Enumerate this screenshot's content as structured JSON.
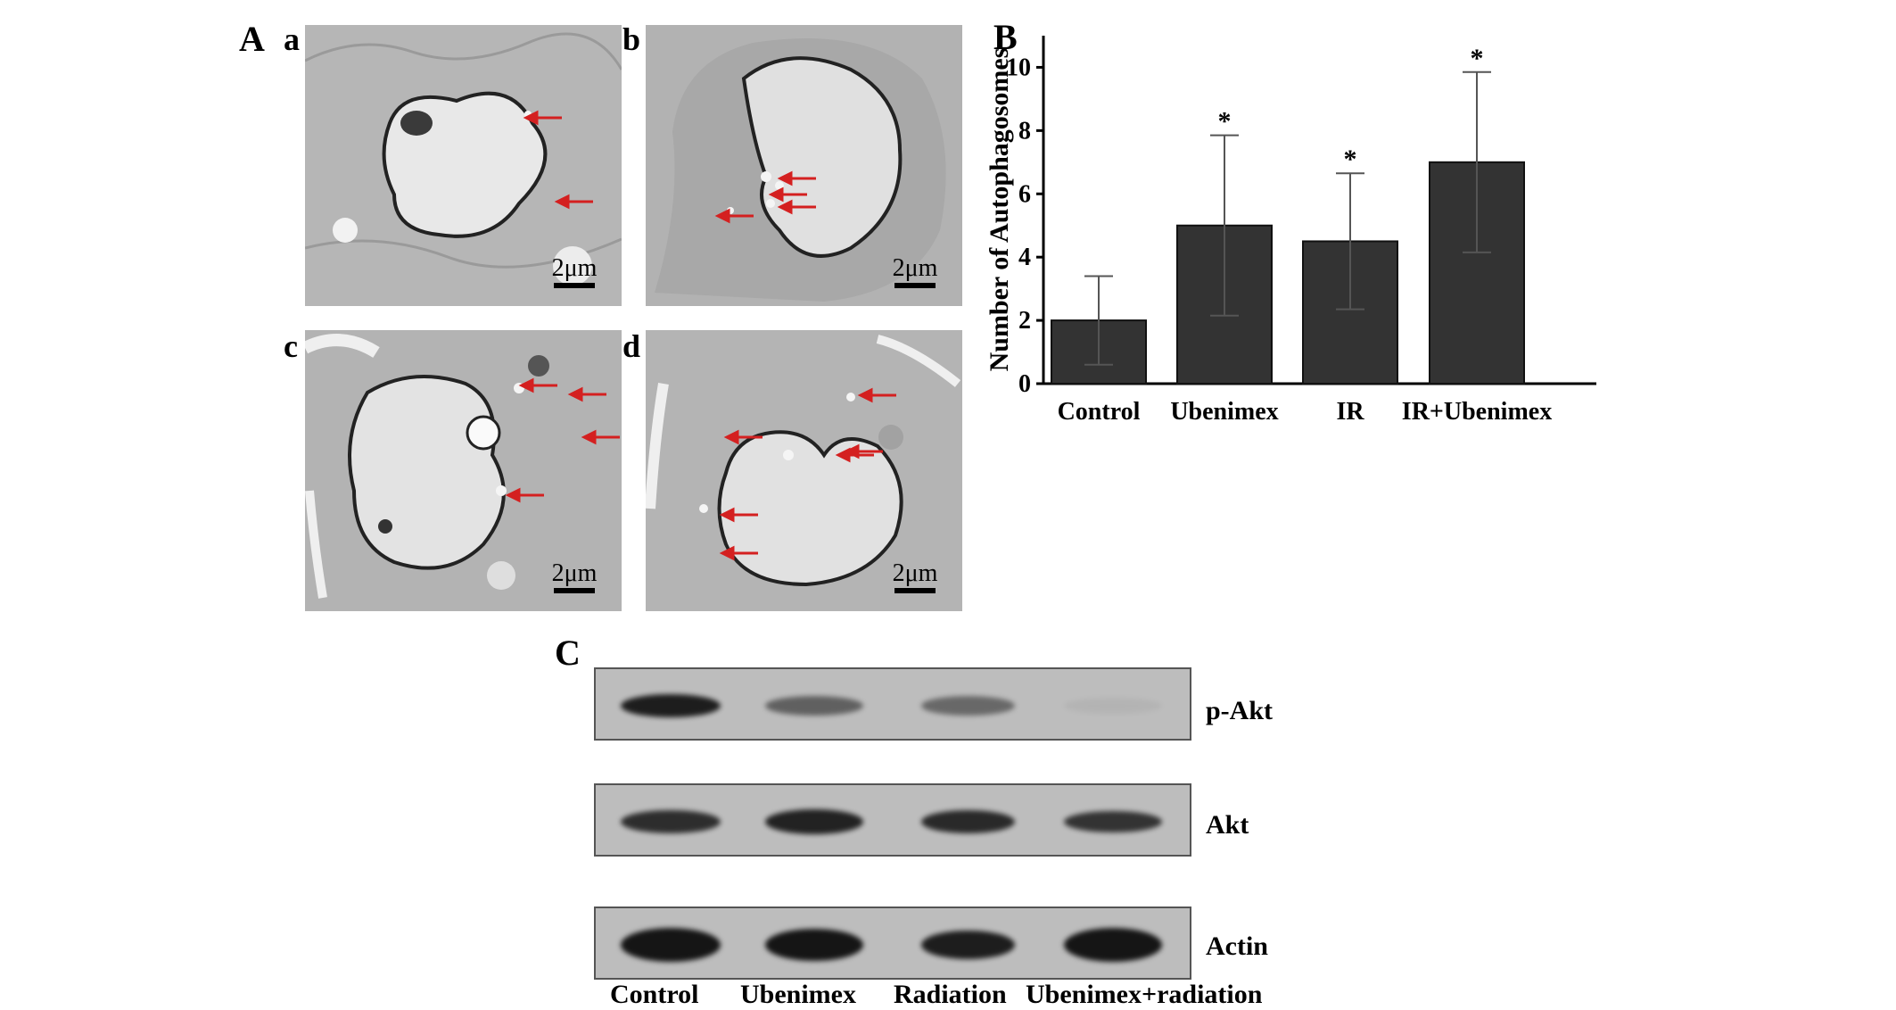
{
  "figure": {
    "panel_A": {
      "letter": "A",
      "subpanels": [
        {
          "letter": "a",
          "scale": "2μm"
        },
        {
          "letter": "b",
          "scale": "2μm"
        },
        {
          "letter": "c",
          "scale": "2μm"
        },
        {
          "letter": "d",
          "scale": "2μm"
        }
      ]
    },
    "panel_B": {
      "letter": "B"
    },
    "panel_C": {
      "letter": "C",
      "blots": [
        "p-Akt",
        "Akt",
        "Actin"
      ],
      "lanes": [
        "Control",
        "Ubenimex",
        "Radiation",
        "Ubenimex+radiation"
      ]
    }
  },
  "colors": {
    "bar": "#333333",
    "arrow": "#d42020",
    "band": "#151515"
  },
  "chart_data": {
    "type": "bar",
    "categories": [
      "Control",
      "Ubenimex",
      "IR",
      "IR+Ubenimex"
    ],
    "values": [
      2.0,
      5.0,
      4.5,
      7.0
    ],
    "error": [
      1.4,
      2.85,
      2.15,
      2.85
    ],
    "significance": [
      "",
      "*",
      "*",
      "*"
    ],
    "ylabel": "Number of Autophagosomes",
    "xlabel": "",
    "ylim": [
      0,
      11
    ],
    "yticks": [
      0,
      2,
      4,
      6,
      8,
      10
    ],
    "grid": false
  }
}
